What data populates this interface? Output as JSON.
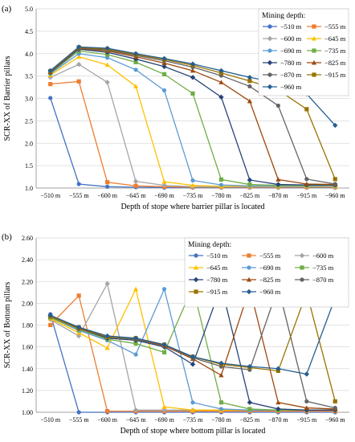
{
  "chart_data": [
    {
      "type": "line",
      "panel_label": "(a)",
      "xlabel": "Depth of stope where barrier pillar is located",
      "ylabel": "SCR-XX of  Barrier pillars",
      "ylim": [
        1.0,
        5.0
      ],
      "yticks": [
        "1.0",
        "1.5",
        "2.0",
        "2.5",
        "3.0",
        "3.5",
        "4.0",
        "4.5",
        "5.0"
      ],
      "categories": [
        "−510 m",
        "−555 m",
        "−600 m",
        "−645 m",
        "−690 m",
        "−735 m",
        "−780 m",
        "−825 m",
        "−870 m",
        "−915 m",
        "−960 m"
      ],
      "legend_title": "Mining depth:",
      "legend_placement": "top-right",
      "grid": true,
      "series": [
        {
          "name": "−510 m",
          "color": "#4472C4",
          "marker": "circle",
          "values": [
            3.01,
            1.09,
            1.03,
            1.02,
            1.01,
            1.01,
            1.01,
            1.01,
            1.01,
            1.01,
            1.01
          ]
        },
        {
          "name": "−555 m",
          "color": "#ED7D31",
          "marker": "square",
          "values": [
            3.32,
            3.38,
            1.13,
            1.05,
            1.03,
            1.02,
            1.02,
            1.02,
            1.02,
            1.02,
            1.02
          ]
        },
        {
          "name": "−600 m",
          "color": "#A5A5A5",
          "marker": "diamond",
          "values": [
            3.47,
            3.76,
            3.36,
            1.15,
            1.06,
            1.03,
            1.03,
            1.03,
            1.03,
            1.03,
            1.03
          ]
        },
        {
          "name": "−645 m",
          "color": "#FFC000",
          "marker": "triangle",
          "values": [
            3.52,
            3.93,
            3.75,
            3.27,
            1.14,
            1.06,
            1.04,
            1.04,
            1.04,
            1.04,
            1.04
          ]
        },
        {
          "name": "−690 m",
          "color": "#5B9BD5",
          "marker": "circle",
          "values": [
            3.55,
            4.0,
            3.91,
            3.64,
            3.18,
            1.17,
            1.07,
            1.05,
            1.05,
            1.05,
            1.05
          ]
        },
        {
          "name": "−735 m",
          "color": "#70AD47",
          "marker": "square",
          "values": [
            3.57,
            4.06,
            3.98,
            3.81,
            3.54,
            3.11,
            1.19,
            1.08,
            1.06,
            1.06,
            1.06
          ]
        },
        {
          "name": "−780 m",
          "color": "#264478",
          "marker": "diamond",
          "values": [
            3.58,
            4.1,
            4.03,
            3.88,
            3.71,
            3.47,
            3.03,
            1.18,
            1.08,
            1.07,
            1.07
          ]
        },
        {
          "name": "−825 m",
          "color": "#9E480E",
          "marker": "triangle",
          "values": [
            3.59,
            4.12,
            4.06,
            3.93,
            3.79,
            3.62,
            3.36,
            2.94,
            1.19,
            1.09,
            1.08
          ]
        },
        {
          "name": "−870 m",
          "color": "#636363",
          "marker": "circle",
          "values": [
            3.6,
            4.13,
            4.08,
            3.96,
            3.84,
            3.7,
            3.51,
            3.27,
            2.84,
            1.2,
            1.09
          ]
        },
        {
          "name": "−915 m",
          "color": "#997300",
          "marker": "square",
          "values": [
            3.61,
            4.14,
            4.1,
            3.98,
            3.87,
            3.74,
            3.57,
            3.39,
            3.19,
            2.76,
            1.2
          ]
        },
        {
          "name": "−960 m",
          "color": "#255E91",
          "marker": "diamond",
          "values": [
            3.62,
            4.15,
            4.12,
            4.0,
            3.89,
            3.77,
            3.62,
            3.47,
            3.35,
            3.1,
            2.4
          ]
        }
      ]
    },
    {
      "type": "line",
      "panel_label": "(b)",
      "xlabel": "Depth of stope where bottom pillar is located",
      "ylabel": "SCR-XX of  Bottom pillars",
      "ylim": [
        1.0,
        2.6
      ],
      "yticks": [
        "1.00",
        "1.20",
        "1.40",
        "1.60",
        "1.80",
        "2.00",
        "2.20",
        "2.40",
        "2.60"
      ],
      "categories": [
        "−510 m",
        "−555 m",
        "−600 m",
        "−645 m",
        "−690 m",
        "−735 m",
        "−780 m",
        "−825 m",
        "−870 m",
        "−915 m",
        "−960 m"
      ],
      "legend_title": "Mining depth:",
      "legend_placement": "top",
      "grid": true,
      "series": [
        {
          "name": "−510 m",
          "color": "#4472C4",
          "marker": "circle",
          "values": [
            1.9,
            1.0,
            1.0,
            1.0,
            1.0,
            1.0,
            1.0,
            1.0,
            1.0,
            1.0,
            1.0
          ]
        },
        {
          "name": "−555 m",
          "color": "#ED7D31",
          "marker": "square",
          "values": [
            1.8,
            2.07,
            1.01,
            1.01,
            1.01,
            1.01,
            1.01,
            1.01,
            1.01,
            1.01,
            1.01
          ]
        },
        {
          "name": "−600 m",
          "color": "#A5A5A5",
          "marker": "diamond",
          "values": [
            1.85,
            1.7,
            2.18,
            1.02,
            1.02,
            1.02,
            1.02,
            1.02,
            1.02,
            1.02,
            1.02
          ]
        },
        {
          "name": "−645 m",
          "color": "#FFC000",
          "marker": "triangle",
          "values": [
            1.86,
            1.73,
            1.59,
            2.13,
            1.05,
            1.02,
            1.02,
            1.02,
            1.02,
            1.02,
            1.02
          ]
        },
        {
          "name": "−690 m",
          "color": "#5B9BD5",
          "marker": "circle",
          "values": [
            1.87,
            1.75,
            1.66,
            1.53,
            2.13,
            1.09,
            1.03,
            1.02,
            1.02,
            1.02,
            1.02
          ]
        },
        {
          "name": "−735 m",
          "color": "#70AD47",
          "marker": "square",
          "values": [
            1.87,
            1.76,
            1.67,
            1.63,
            1.55,
            2.15,
            1.09,
            1.03,
            1.02,
            1.02,
            1.02
          ]
        },
        {
          "name": "−780 m",
          "color": "#264478",
          "marker": "diamond",
          "values": [
            1.88,
            1.77,
            1.68,
            1.66,
            1.6,
            1.44,
            2.16,
            1.09,
            1.03,
            1.02,
            1.02
          ]
        },
        {
          "name": "−825 m",
          "color": "#9E480E",
          "marker": "triangle",
          "values": [
            1.88,
            1.77,
            1.69,
            1.67,
            1.61,
            1.49,
            1.34,
            2.14,
            1.09,
            1.04,
            1.03
          ]
        },
        {
          "name": "−870 m",
          "color": "#636363",
          "marker": "circle",
          "values": [
            1.88,
            1.78,
            1.69,
            1.67,
            1.62,
            1.5,
            1.42,
            1.39,
            2.15,
            1.1,
            1.04
          ]
        },
        {
          "name": "−915 m",
          "color": "#997300",
          "marker": "square",
          "values": [
            1.88,
            1.78,
            1.69,
            1.68,
            1.62,
            1.51,
            1.44,
            1.41,
            1.38,
            2.1,
            1.1
          ]
        },
        {
          "name": "−960 m",
          "color": "#255E91",
          "marker": "diamond",
          "values": [
            1.89,
            1.78,
            1.7,
            1.68,
            1.62,
            1.51,
            1.45,
            1.42,
            1.4,
            1.35,
            2.05
          ]
        }
      ]
    }
  ]
}
